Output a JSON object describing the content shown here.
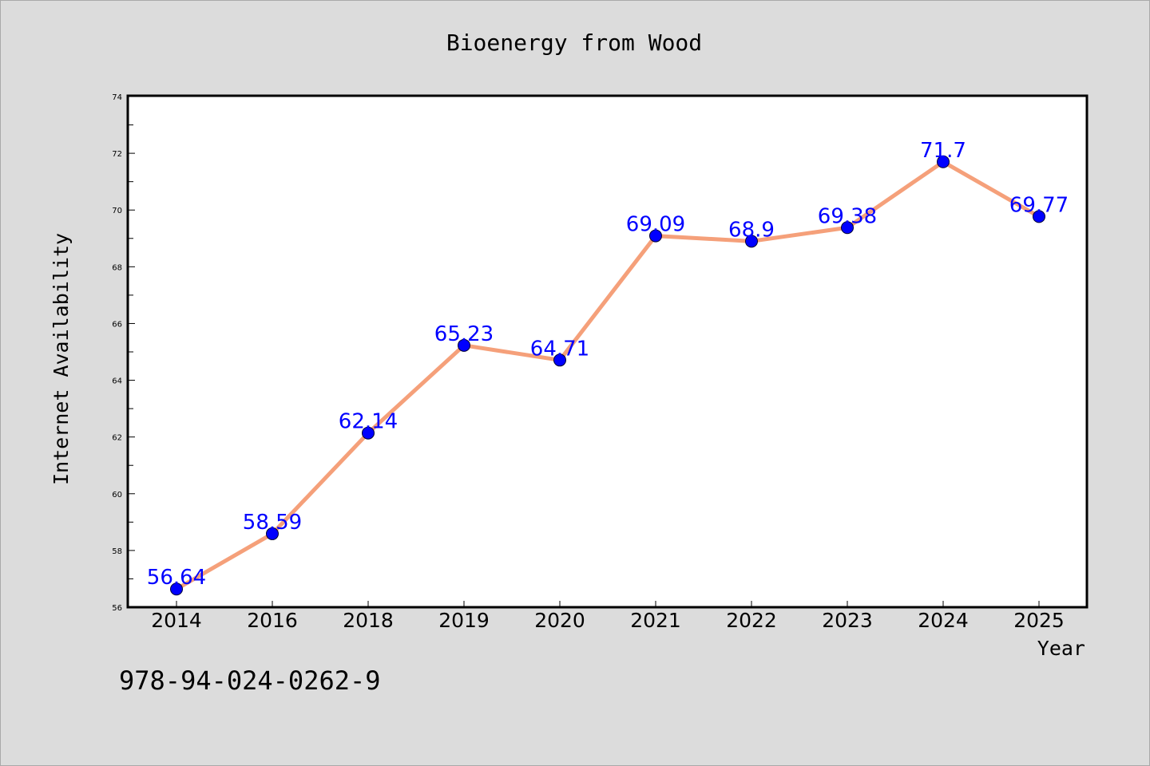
{
  "chart_data": {
    "type": "line",
    "title": "Bioenergy from Wood",
    "xlabel": "Year",
    "ylabel": "Internet Availability",
    "categories": [
      "2014",
      "2016",
      "2018",
      "2019",
      "2020",
      "2021",
      "2022",
      "2023",
      "2024",
      "2025"
    ],
    "series": [
      {
        "values": [
          56.64,
          58.59,
          62.14,
          65.23,
          64.71,
          69.09,
          68.9,
          69.38,
          71.7,
          69.77
        ],
        "labels": [
          "56.64",
          "58.59",
          "62.14",
          "65.23",
          "64.71",
          "69.09",
          "68.9",
          "69.38",
          "71.7",
          "69.77"
        ],
        "line_color": "#f5a07a",
        "marker_color": "#0000ff"
      }
    ],
    "ylim": [
      56,
      74
    ],
    "yticks": [
      "56",
      "58",
      "60",
      "62",
      "64",
      "66",
      "68",
      "70",
      "72",
      "74"
    ],
    "grid": false,
    "data_label_color": "#0000ff",
    "background_color": "#dcdcdc",
    "plot_background_color": "#ffffff"
  },
  "footer": {
    "code": "978-94-024-0262-9"
  }
}
